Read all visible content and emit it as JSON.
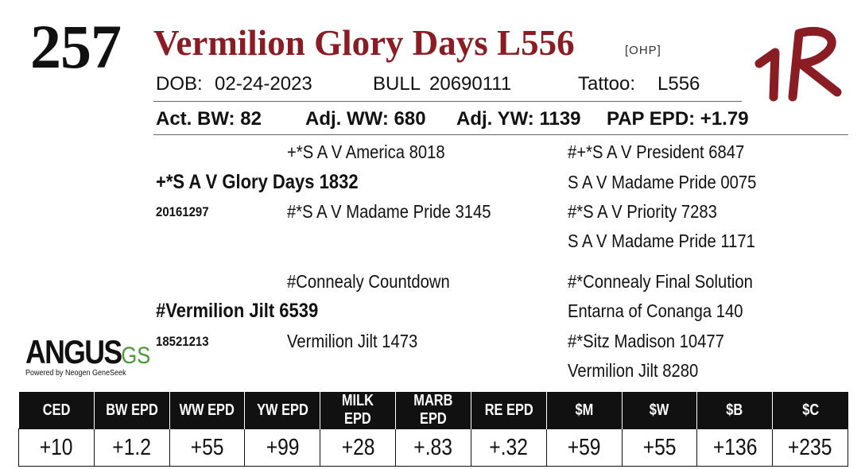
{
  "lot": {
    "number": "257"
  },
  "animal": {
    "name": "Vermilion Glory Days L556",
    "tag": "[OHP]"
  },
  "info": {
    "dob_label": "DOB:",
    "dob": "02-24-2023",
    "sex": "BULL",
    "reg": "20690111",
    "tattoo_label": "Tattoo:",
    "tattoo": "L556"
  },
  "performance": {
    "bw": "Act. BW: 82",
    "ww": "Adj. WW: 680",
    "yw": "Adj. YW: 1139",
    "pap": "PAP EPD: +1.79"
  },
  "pedigree": {
    "sire": {
      "name": "+*S A V Glory Days 1832",
      "reg": "20161297"
    },
    "sire_sire": "+*S A V America 8018",
    "sire_dam": "#*S A V Madame Pride 3145",
    "ss_sire": "#+*S A V President 6847",
    "ss_dam": "S A V Madame Pride 0075",
    "sd_sire": "#*S A V Priority 7283",
    "sd_dam": "S A V Madame Pride 1171",
    "dam": {
      "name": "#Vermilion Jilt 6539",
      "reg": "18521213"
    },
    "dam_sire": "#Connealy Countdown",
    "dam_dam": "Vermilion Jilt 1473",
    "ds_sire": "#*Connealy Final Solution",
    "ds_dam": "Entarna of Conanga 140",
    "dd_sire": "#*Sitz Madison 10477",
    "dd_dam": "Vermilion Jilt 8280"
  },
  "logo": {
    "main": "ANGUS",
    "suffix": "GS",
    "sub": "Powered by Neogen GeneSeek",
    "color": "#4a9a3a"
  },
  "brand": {
    "color": "#8a1c24"
  },
  "epd": {
    "headers": [
      "CED",
      "BW EPD",
      "WW EPD",
      "YW EPD",
      "MILK EPD",
      "MARB EPD",
      "RE EPD",
      "$M",
      "$W",
      "$B",
      "$C"
    ],
    "values": [
      "+10",
      "+1.2",
      "+55",
      "+99",
      "+28",
      "+.83",
      "+.32",
      "+59",
      "+55",
      "+136",
      "+235"
    ]
  }
}
